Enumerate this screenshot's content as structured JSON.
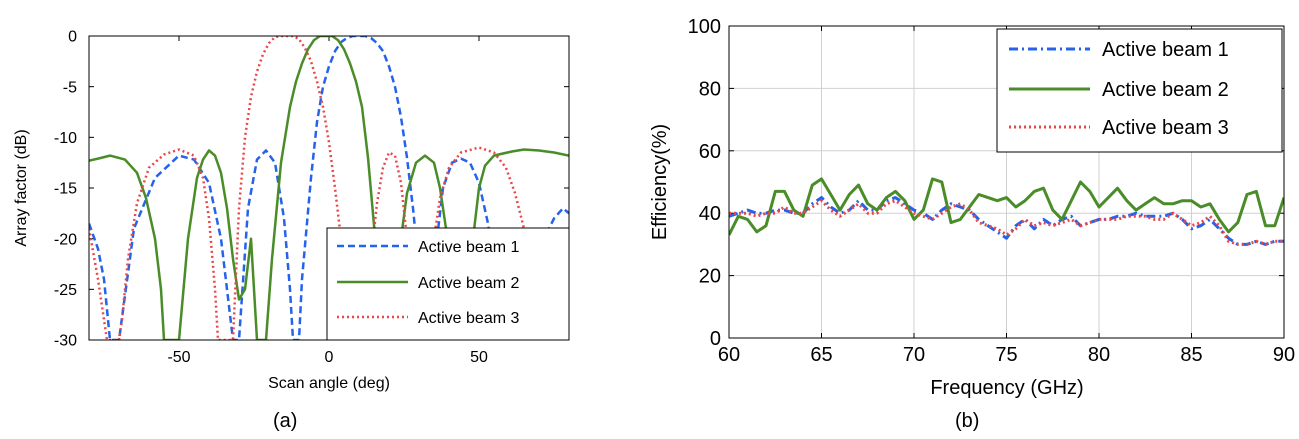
{
  "captions": {
    "a": "(a)",
    "b": "(b)"
  },
  "colors": {
    "beam1": "#2563eb",
    "beam2": "#4a8c28",
    "beam3": "#e8474a",
    "grid": "#d0d0d0"
  },
  "chart_data": [
    {
      "type": "line",
      "xlabel": "Scan angle (deg)",
      "ylabel": "Array factor (dB)",
      "xlim": [
        -80,
        80
      ],
      "ylim": [
        -30,
        0
      ],
      "xticks": [
        -50,
        0,
        50
      ],
      "yticks": [
        0,
        -5,
        -10,
        -15,
        -20,
        -25,
        -30
      ],
      "grid": false,
      "legend_position": "bottom-right",
      "series": [
        {
          "name": "Active beam 1",
          "style": "dashed",
          "color": "#2563eb",
          "x": [
            -80,
            -77,
            -75,
            -73,
            -70,
            -65,
            -58,
            -50,
            -45,
            -40,
            -36,
            -32,
            -30,
            -27,
            -24,
            -21,
            -18,
            -15,
            -13,
            -12,
            -11,
            -10,
            -9,
            -6,
            -4,
            -2,
            0,
            2,
            4,
            6,
            8,
            10,
            12,
            14,
            16,
            18,
            20,
            22,
            24,
            26,
            28,
            30,
            32,
            33,
            34,
            35,
            36,
            38,
            41,
            44,
            47,
            50,
            53,
            56,
            59,
            62,
            64,
            65,
            67,
            70,
            75,
            78,
            80
          ],
          "y": [
            -18.5,
            -21,
            -24,
            -30,
            -30,
            -19,
            -14,
            -11.8,
            -12.2,
            -14.5,
            -20,
            -30,
            -30,
            -17,
            -12.2,
            -11.3,
            -12.5,
            -18,
            -25,
            -30,
            -30,
            -30,
            -24,
            -14,
            -8.5,
            -5,
            -3,
            -1.5,
            -0.6,
            -0.2,
            0,
            0,
            0,
            -0.2,
            -0.7,
            -1.5,
            -3,
            -5,
            -8,
            -12,
            -17,
            -23,
            -30,
            -30,
            -30,
            -28,
            -20,
            -15,
            -12.5,
            -12.1,
            -12.5,
            -14.5,
            -18.5,
            -25,
            -30,
            -30,
            -30,
            -30,
            -26,
            -21,
            -18,
            -17,
            -17.5
          ]
        },
        {
          "name": "Active beam 2",
          "style": "solid",
          "color": "#4a8c28",
          "x": [
            -80,
            -77,
            -73,
            -68,
            -64,
            -61,
            -58,
            -56,
            -55,
            -54,
            -52,
            -50,
            -47,
            -44,
            -42,
            -40,
            -38,
            -36,
            -34,
            -32,
            -30,
            -28,
            -26,
            -24,
            -23,
            -22,
            -21,
            -19,
            -16,
            -13,
            -11,
            -9,
            -7,
            -5,
            -3,
            -1,
            0,
            1,
            3,
            5,
            7,
            9,
            11,
            13,
            16,
            19,
            21,
            22,
            23,
            24,
            26,
            29,
            32,
            35,
            37,
            39,
            41,
            43,
            44,
            45,
            46,
            48,
            50,
            52,
            55,
            58,
            61,
            65,
            70,
            75,
            80
          ],
          "y": [
            -12.3,
            -12.1,
            -11.8,
            -12.2,
            -13.5,
            -16,
            -20,
            -25,
            -30,
            -30,
            -30,
            -30,
            -20,
            -14,
            -12.2,
            -11.3,
            -11.8,
            -13.5,
            -17,
            -22,
            -26,
            -25,
            -20,
            -30,
            -30,
            -30,
            -30,
            -22,
            -12.5,
            -7,
            -4.5,
            -2.7,
            -1.3,
            -0.4,
            0,
            0,
            0,
            0,
            -0.4,
            -1.3,
            -2.7,
            -4.5,
            -7,
            -12,
            -22,
            -30,
            -30,
            -30,
            -30,
            -20,
            -15.5,
            -12.5,
            -11.8,
            -12.5,
            -15,
            -19,
            -25,
            -30,
            -30,
            -30,
            -30,
            -20,
            -15,
            -12.8,
            -11.8,
            -11.6,
            -11.4,
            -11.2,
            -11.3,
            -11.5,
            -11.8
          ]
        },
        {
          "name": "Active beam 3",
          "style": "dotted",
          "color": "#e8474a",
          "x": [
            -80,
            -77,
            -74,
            -71,
            -70,
            -69,
            -67,
            -64,
            -60,
            -55,
            -50,
            -45,
            -42,
            -40,
            -38,
            -37,
            -36,
            -34,
            -32,
            -30,
            -28,
            -26,
            -24,
            -22,
            -20,
            -18,
            -16,
            -14,
            -12,
            -10,
            -8,
            -6,
            -4,
            -2,
            0,
            2,
            4,
            6,
            8,
            10,
            11,
            12,
            14,
            16,
            18,
            20,
            22,
            24,
            26,
            28,
            30,
            31,
            32,
            34,
            37,
            40,
            44,
            50,
            55,
            59,
            62,
            65,
            68,
            70,
            72,
            74,
            76,
            78,
            80
          ],
          "y": [
            -19,
            -24,
            -30,
            -30,
            -30,
            -28,
            -22,
            -16.5,
            -13,
            -11.7,
            -11.2,
            -11.8,
            -14,
            -18,
            -25,
            -30,
            -30,
            -30,
            -30,
            -17,
            -10,
            -6,
            -3.5,
            -1.8,
            -0.7,
            -0.1,
            0,
            0,
            0,
            -0.3,
            -1.2,
            -2.5,
            -4.5,
            -7,
            -10.5,
            -15,
            -20,
            -27,
            -30,
            -30,
            -30,
            -30,
            -22,
            -16.5,
            -13,
            -11.5,
            -11.8,
            -14.5,
            -20,
            -27,
            -30,
            -30,
            -30,
            -22,
            -16,
            -13,
            -11.5,
            -11,
            -11.5,
            -13,
            -15.5,
            -19,
            -24,
            -30,
            -30,
            -30,
            -30,
            -30,
            -30
          ]
        }
      ]
    },
    {
      "type": "line",
      "xlabel": "Frequency (GHz)",
      "ylabel": "Efficiency(%)",
      "xlim": [
        60,
        90
      ],
      "ylim": [
        0,
        100
      ],
      "xticks": [
        60,
        65,
        70,
        75,
        80,
        85,
        90
      ],
      "yticks": [
        0,
        20,
        40,
        60,
        80,
        100
      ],
      "grid": true,
      "legend_position": "top-right",
      "series": [
        {
          "name": "Active beam 1",
          "style": "dashdot",
          "color": "#2563eb",
          "x": [
            60,
            60.5,
            61,
            61.5,
            62,
            62.5,
            63,
            63.5,
            64,
            64.5,
            65,
            65.5,
            66,
            66.5,
            67,
            67.5,
            68,
            68.5,
            69,
            69.5,
            70,
            70.5,
            71,
            71.5,
            72,
            72.5,
            73,
            73.5,
            74,
            74.5,
            75,
            75.5,
            76,
            76.5,
            77,
            77.5,
            78,
            78.5,
            79,
            79.5,
            80,
            80.5,
            81,
            81.5,
            82,
            82.5,
            83,
            83.5,
            84,
            84.5,
            85,
            85.5,
            86,
            86.5,
            87,
            87.5,
            88,
            88.5,
            89,
            89.5,
            90
          ],
          "y": [
            39,
            40,
            41,
            40,
            40,
            41,
            41,
            40,
            40,
            43,
            45,
            42,
            40,
            41,
            44,
            41,
            41,
            44,
            45,
            43,
            41,
            40,
            38,
            41,
            43,
            42,
            41,
            38,
            36,
            34,
            32,
            36,
            38,
            35,
            38,
            36,
            38,
            39,
            36,
            37,
            38,
            38,
            39,
            39,
            40,
            39,
            39,
            39,
            40,
            38,
            35,
            36,
            38,
            35,
            32,
            30,
            30,
            31,
            30,
            31,
            31
          ]
        },
        {
          "name": "Active beam 2",
          "style": "solid",
          "color": "#4a8c28",
          "x": [
            60,
            60.5,
            61,
            61.5,
            62,
            62.5,
            63,
            63.5,
            64,
            64.5,
            65,
            65.5,
            66,
            66.5,
            67,
            67.5,
            68,
            68.5,
            69,
            69.5,
            70,
            70.5,
            71,
            71.5,
            72,
            72.5,
            73,
            73.5,
            74,
            74.5,
            75,
            75.5,
            76,
            76.5,
            77,
            77.5,
            78,
            78.5,
            79,
            79.5,
            80,
            80.5,
            81,
            81.5,
            82,
            82.5,
            83,
            83.5,
            84,
            84.5,
            85,
            85.5,
            86,
            86.5,
            87,
            87.5,
            88,
            88.5,
            89,
            89.5,
            90
          ],
          "y": [
            33,
            39,
            38,
            34,
            36,
            47,
            47,
            41,
            39,
            49,
            51,
            46,
            41,
            46,
            49,
            43,
            41,
            45,
            47,
            44,
            38,
            41,
            51,
            50,
            37,
            38,
            42,
            46,
            45,
            44,
            45,
            42,
            44,
            47,
            48,
            41,
            38,
            44,
            50,
            47,
            42,
            45,
            48,
            44,
            41,
            43,
            45,
            43,
            43,
            44,
            44,
            42,
            43,
            38,
            34,
            37,
            46,
            47,
            36,
            36,
            45
          ]
        },
        {
          "name": "Active beam 3",
          "style": "dotted",
          "color": "#e8474a",
          "x": [
            60,
            60.5,
            61,
            61.5,
            62,
            62.5,
            63,
            63.5,
            64,
            64.5,
            65,
            65.5,
            66,
            66.5,
            67,
            67.5,
            68,
            68.5,
            69,
            69.5,
            70,
            70.5,
            71,
            71.5,
            72,
            72.5,
            73,
            73.5,
            74,
            74.5,
            75,
            75.5,
            76,
            76.5,
            77,
            77.5,
            78,
            78.5,
            79,
            79.5,
            80,
            80.5,
            81,
            81.5,
            82,
            82.5,
            83,
            83.5,
            84,
            84.5,
            85,
            85.5,
            86,
            86.5,
            87,
            87.5,
            88,
            88.5,
            89,
            89.5,
            90
          ],
          "y": [
            40,
            40,
            40,
            39,
            40,
            40,
            42,
            40,
            40,
            42,
            44,
            41,
            39,
            41,
            43,
            40,
            40,
            43,
            44,
            42,
            40,
            39,
            38,
            40,
            42,
            43,
            41,
            37,
            36,
            35,
            33,
            35,
            38,
            36,
            37,
            36,
            37,
            38,
            36,
            37,
            38,
            38,
            38,
            39,
            39,
            39,
            38,
            38,
            40,
            38,
            36,
            37,
            39,
            36,
            31,
            30,
            30,
            31,
            30,
            31,
            31
          ]
        }
      ]
    }
  ]
}
